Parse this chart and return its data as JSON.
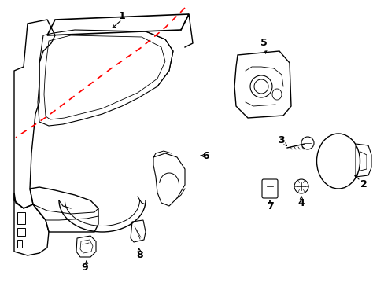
{
  "background_color": "#ffffff",
  "line_color": "#000000",
  "red_dashed_color": "#ff0000",
  "fig_width": 4.89,
  "fig_height": 3.6,
  "dpi": 100
}
